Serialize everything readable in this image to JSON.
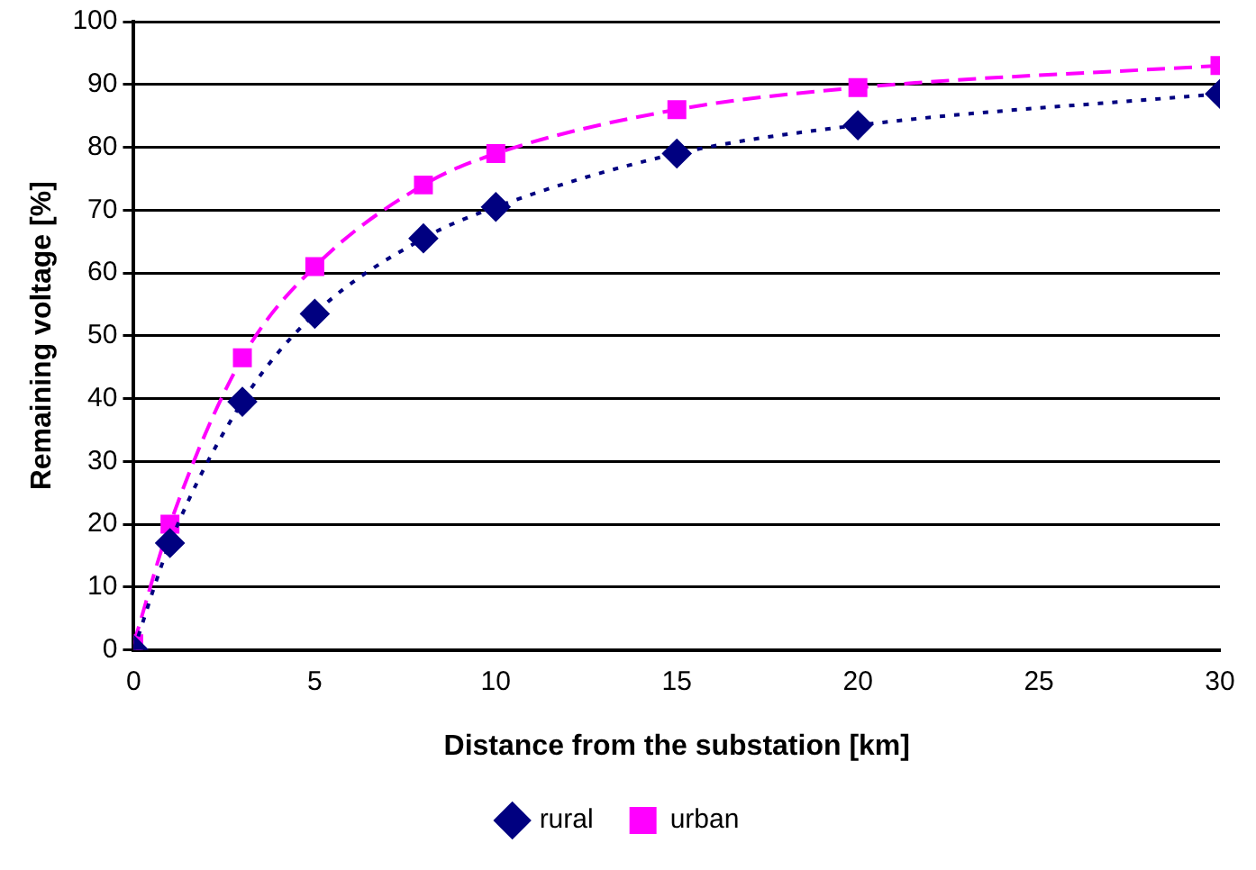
{
  "chart_data": {
    "type": "line",
    "xlabel": "Distance from the substation [km]",
    "ylabel": "Remaining voltage [%]",
    "x": [
      0,
      1,
      3,
      5,
      8,
      10,
      15,
      20,
      30
    ],
    "series": [
      {
        "name": "rural",
        "color": "#000080",
        "marker": "diamond",
        "line_style": "dotted",
        "values": [
          0,
          17,
          39.5,
          53.5,
          65.5,
          70.5,
          79,
          83.5,
          88.5
        ]
      },
      {
        "name": "urban",
        "color": "#ff00ff",
        "marker": "square",
        "line_style": "dashed",
        "values": [
          1,
          20,
          46.5,
          61,
          74,
          79,
          86,
          89.5,
          93
        ]
      }
    ],
    "xlim": [
      0,
      30
    ],
    "xticks": [
      0,
      5,
      10,
      15,
      20,
      25,
      30
    ],
    "ylim": [
      0,
      100
    ],
    "yticks": [
      0,
      10,
      20,
      30,
      40,
      50,
      60,
      70,
      80,
      90,
      100
    ],
    "grid": "y",
    "legend": "bottom"
  }
}
